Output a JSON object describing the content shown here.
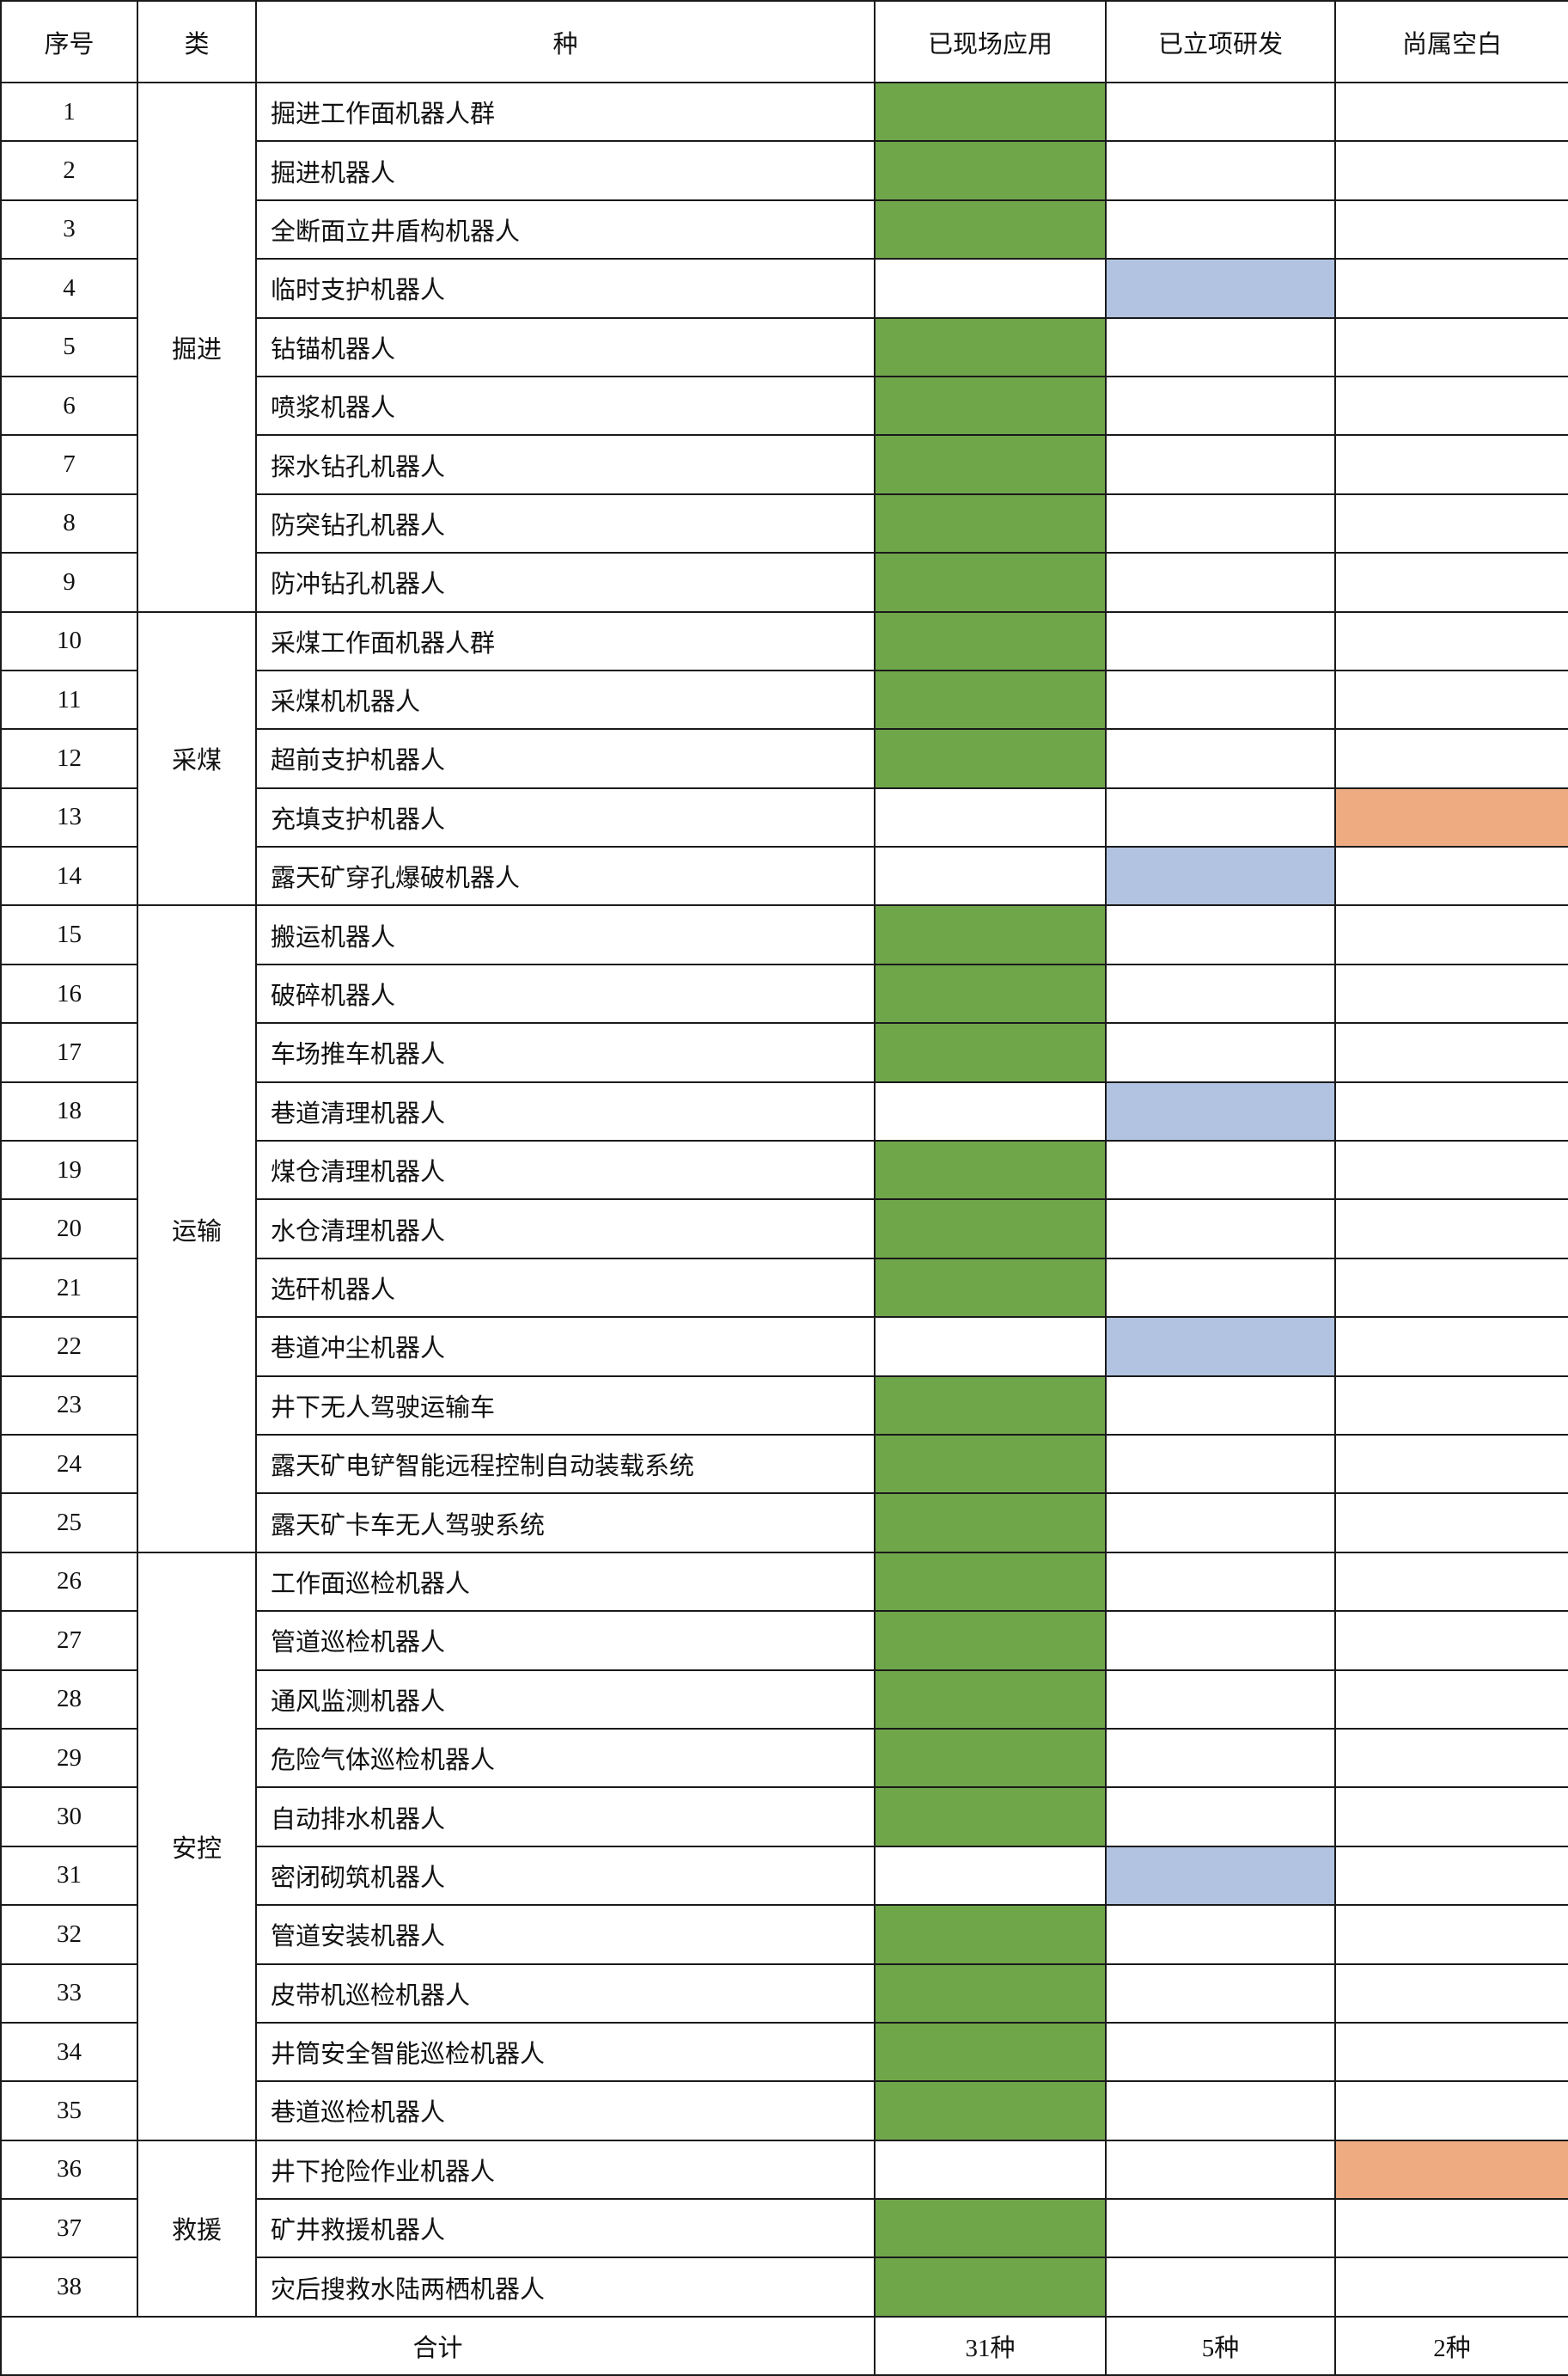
{
  "headers": {
    "index": "序号",
    "category": "类",
    "type": "种",
    "applied": "已现场应用",
    "research": "已立项研发",
    "blank": "尚属空白"
  },
  "colors": {
    "applied": "#70a64a",
    "research": "#b1c3e1",
    "blank": "#eeab82"
  },
  "categories": [
    {
      "label": "掘进",
      "count": 9
    },
    {
      "label": "采煤",
      "count": 5
    },
    {
      "label": "运输",
      "count": 11
    },
    {
      "label": "安控",
      "count": 10
    },
    {
      "label": "救援",
      "count": 3
    }
  ],
  "rows": [
    {
      "no": "1",
      "name": "掘进工作面机器人群",
      "status": "applied"
    },
    {
      "no": "2",
      "name": "掘进机器人",
      "status": "applied"
    },
    {
      "no": "3",
      "name": "全断面立井盾构机器人",
      "status": "applied"
    },
    {
      "no": "4",
      "name": "临时支护机器人",
      "status": "research"
    },
    {
      "no": "5",
      "name": "钻锚机器人",
      "status": "applied"
    },
    {
      "no": "6",
      "name": "喷浆机器人",
      "status": "applied"
    },
    {
      "no": "7",
      "name": "探水钻孔机器人",
      "status": "applied"
    },
    {
      "no": "8",
      "name": "防突钻孔机器人",
      "status": "applied"
    },
    {
      "no": "9",
      "name": "防冲钻孔机器人",
      "status": "applied"
    },
    {
      "no": "10",
      "name": "采煤工作面机器人群",
      "status": "applied"
    },
    {
      "no": "11",
      "name": "采煤机机器人",
      "status": "applied"
    },
    {
      "no": "12",
      "name": "超前支护机器人",
      "status": "applied"
    },
    {
      "no": "13",
      "name": "充填支护机器人",
      "status": "blank"
    },
    {
      "no": "14",
      "name": "露天矿穿孔爆破机器人",
      "status": "research"
    },
    {
      "no": "15",
      "name": "搬运机器人",
      "status": "applied"
    },
    {
      "no": "16",
      "name": "破碎机器人",
      "status": "applied"
    },
    {
      "no": "17",
      "name": "车场推车机器人",
      "status": "applied"
    },
    {
      "no": "18",
      "name": "巷道清理机器人",
      "status": "research"
    },
    {
      "no": "19",
      "name": "煤仓清理机器人",
      "status": "applied"
    },
    {
      "no": "20",
      "name": "水仓清理机器人",
      "status": "applied"
    },
    {
      "no": "21",
      "name": "选矸机器人",
      "status": "applied"
    },
    {
      "no": "22",
      "name": "巷道冲尘机器人",
      "status": "research"
    },
    {
      "no": "23",
      "name": "井下无人驾驶运输车",
      "status": "applied"
    },
    {
      "no": "24",
      "name": "露天矿电铲智能远程控制自动装载系统",
      "status": "applied"
    },
    {
      "no": "25",
      "name": "露天矿卡车无人驾驶系统",
      "status": "applied"
    },
    {
      "no": "26",
      "name": "工作面巡检机器人",
      "status": "applied"
    },
    {
      "no": "27",
      "name": "管道巡检机器人",
      "status": "applied"
    },
    {
      "no": "28",
      "name": "通风监测机器人",
      "status": "applied"
    },
    {
      "no": "29",
      "name": "危险气体巡检机器人",
      "status": "applied"
    },
    {
      "no": "30",
      "name": "自动排水机器人",
      "status": "applied"
    },
    {
      "no": "31",
      "name": "密闭砌筑机器人",
      "status": "research"
    },
    {
      "no": "32",
      "name": "管道安装机器人",
      "status": "applied"
    },
    {
      "no": "33",
      "name": "皮带机巡检机器人",
      "status": "applied"
    },
    {
      "no": "34",
      "name": "井筒安全智能巡检机器人",
      "status": "applied"
    },
    {
      "no": "35",
      "name": "巷道巡检机器人",
      "status": "applied"
    },
    {
      "no": "36",
      "name": "井下抢险作业机器人",
      "status": "blank"
    },
    {
      "no": "37",
      "name": "矿井救援机器人",
      "status": "applied"
    },
    {
      "no": "38",
      "name": "灾后搜救水陆两栖机器人",
      "status": "applied"
    }
  ],
  "total": {
    "label": "合计",
    "applied": "31种",
    "research": "5种",
    "blank": "2种"
  }
}
